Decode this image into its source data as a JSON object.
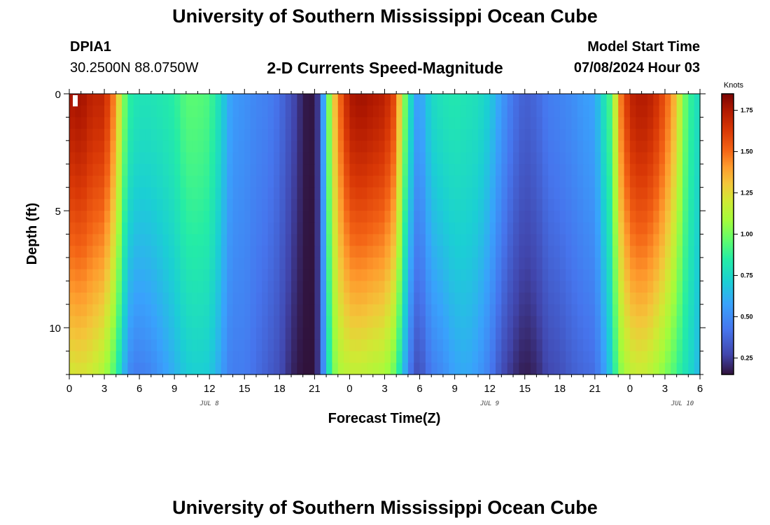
{
  "header": {
    "title": "University of Southern Mississippi Ocean Cube",
    "station_id": "DPIA1",
    "location": "30.2500N  88.0750W",
    "chart_title": "2-D Currents Speed-Magnitude",
    "start_label": "Model Start Time",
    "start_value": "07/08/2024 Hour 03"
  },
  "footer": {
    "title": "University of Southern Mississippi Ocean Cube"
  },
  "chart_data": {
    "type": "heatmap",
    "title": "2-D Currents Speed-Magnitude",
    "xlabel": "Forecast Time(Z)",
    "ylabel": "Depth (ft)",
    "x_range_hours": [
      0,
      54
    ],
    "x_ticks": [
      {
        "hour": 0,
        "label": "0"
      },
      {
        "hour": 3,
        "label": "3"
      },
      {
        "hour": 6,
        "label": "6"
      },
      {
        "hour": 9,
        "label": "9"
      },
      {
        "hour": 12,
        "label": "12"
      },
      {
        "hour": 15,
        "label": "15"
      },
      {
        "hour": 18,
        "label": "18"
      },
      {
        "hour": 21,
        "label": "21"
      },
      {
        "hour": 24,
        "label": "0"
      },
      {
        "hour": 27,
        "label": "3"
      },
      {
        "hour": 30,
        "label": "6"
      },
      {
        "hour": 33,
        "label": "9"
      },
      {
        "hour": 36,
        "label": "12"
      },
      {
        "hour": 39,
        "label": "15"
      },
      {
        "hour": 42,
        "label": "18"
      },
      {
        "hour": 45,
        "label": "21"
      },
      {
        "hour": 48,
        "label": "0"
      },
      {
        "hour": 51,
        "label": "3"
      },
      {
        "hour": 54,
        "label": "6"
      }
    ],
    "date_labels": [
      {
        "hour": 12,
        "label": "JUL 8"
      },
      {
        "hour": 36,
        "label": "JUL 9"
      },
      {
        "hour": 52.5,
        "label": "JUL 10"
      }
    ],
    "y_range_ft": [
      0,
      12
    ],
    "y_ticks": [
      {
        "depth": 0,
        "label": "0"
      },
      {
        "depth": 5,
        "label": "5"
      },
      {
        "depth": 10,
        "label": "10"
      }
    ],
    "colorbar": {
      "unit_label": "Knots",
      "min": 0.15,
      "max": 1.85,
      "tick_values": [
        0.25,
        0.5,
        0.75,
        1.0,
        1.25,
        1.5,
        1.75
      ],
      "tick_labels": [
        "0.25",
        "0.50",
        "0.75",
        "1.00",
        "1.25",
        "1.50",
        "1.75"
      ]
    },
    "speed_profile_knots": {
      "hours": [
        0,
        1,
        2,
        3,
        4,
        4.5,
        5,
        5.5,
        6,
        7,
        8,
        9,
        10,
        11,
        12,
        13,
        13.5,
        14,
        15,
        16,
        17,
        18,
        19,
        19.5,
        20,
        20.5,
        21,
        21.5,
        22,
        22.5,
        23,
        24,
        25,
        26,
        27,
        28,
        28.5,
        29,
        29.5,
        30,
        31,
        32,
        33,
        34,
        35,
        36,
        37,
        38,
        39,
        40,
        41,
        42,
        43,
        44,
        45,
        46,
        46.5,
        47,
        48,
        49,
        50,
        51,
        52,
        52.5,
        53,
        54
      ],
      "surface": [
        1.75,
        1.78,
        1.7,
        1.7,
        1.4,
        1.1,
        0.88,
        0.82,
        0.8,
        0.8,
        0.82,
        0.85,
        0.95,
        0.95,
        0.92,
        0.75,
        0.62,
        0.55,
        0.52,
        0.48,
        0.46,
        0.4,
        0.3,
        0.25,
        0.18,
        0.15,
        0.17,
        0.3,
        0.85,
        1.2,
        1.45,
        1.75,
        1.78,
        1.75,
        1.72,
        1.55,
        1.1,
        0.9,
        0.6,
        0.55,
        0.75,
        0.8,
        0.82,
        0.8,
        0.78,
        0.7,
        0.55,
        0.42,
        0.35,
        0.38,
        0.45,
        0.47,
        0.5,
        0.55,
        0.58,
        0.85,
        0.95,
        1.4,
        1.7,
        1.75,
        1.7,
        1.55,
        1.3,
        1.05,
        0.9,
        0.75
      ],
      "bottom": [
        1.2,
        1.22,
        1.18,
        1.1,
        0.9,
        0.7,
        0.52,
        0.45,
        0.45,
        0.48,
        0.55,
        0.62,
        0.7,
        0.72,
        0.7,
        0.58,
        0.48,
        0.45,
        0.45,
        0.4,
        0.35,
        0.3,
        0.2,
        0.17,
        0.15,
        0.15,
        0.15,
        0.3,
        0.7,
        0.95,
        1.1,
        1.15,
        1.15,
        1.12,
        1.1,
        0.95,
        0.7,
        0.5,
        0.32,
        0.3,
        0.45,
        0.5,
        0.58,
        0.6,
        0.55,
        0.45,
        0.3,
        0.22,
        0.17,
        0.2,
        0.28,
        0.3,
        0.35,
        0.38,
        0.4,
        0.6,
        0.75,
        1.0,
        1.15,
        1.18,
        1.12,
        1.02,
        0.9,
        0.82,
        0.78,
        0.62
      ]
    }
  }
}
